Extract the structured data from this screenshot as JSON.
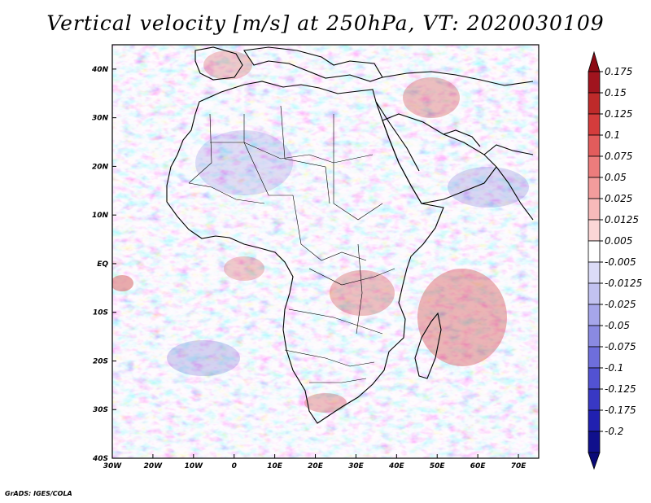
{
  "title": "Vertical velocity [m/s] at 250hPa, VT: 2020030109",
  "footer": "GrADS: IGES/COLA",
  "map": {
    "lon_range": [
      -30,
      75
    ],
    "lat_range": [
      -40,
      45
    ],
    "lon_ticks": [
      {
        "value": -30,
        "label": "30W"
      },
      {
        "value": -20,
        "label": "20W"
      },
      {
        "value": -10,
        "label": "10W"
      },
      {
        "value": 0,
        "label": "0"
      },
      {
        "value": 10,
        "label": "10E"
      },
      {
        "value": 20,
        "label": "20E"
      },
      {
        "value": 30,
        "label": "30E"
      },
      {
        "value": 40,
        "label": "40E"
      },
      {
        "value": 50,
        "label": "50E"
      },
      {
        "value": 60,
        "label": "60E"
      },
      {
        "value": 70,
        "label": "70E"
      }
    ],
    "lat_ticks": [
      {
        "value": 40,
        "label": "40N"
      },
      {
        "value": 30,
        "label": "30N"
      },
      {
        "value": 20,
        "label": "20N"
      },
      {
        "value": 10,
        "label": "10N"
      },
      {
        "value": 0,
        "label": "EQ"
      },
      {
        "value": -10,
        "label": "10S"
      },
      {
        "value": -20,
        "label": "20S"
      },
      {
        "value": -30,
        "label": "30S"
      },
      {
        "value": -40,
        "label": "40S"
      }
    ]
  },
  "colorbar": {
    "levels": [
      {
        "label": "0.175",
        "color": "#a0141e"
      },
      {
        "label": "0.15",
        "color": "#be2a2a"
      },
      {
        "label": "0.125",
        "color": "#d43c3c"
      },
      {
        "label": "0.1",
        "color": "#e25c5c"
      },
      {
        "label": "0.075",
        "color": "#ec7c7c"
      },
      {
        "label": "0.05",
        "color": "#f29c9c"
      },
      {
        "label": "0.025",
        "color": "#f7baba"
      },
      {
        "label": "0.0125",
        "color": "#fbd6d6"
      },
      {
        "label": "0.005",
        "color": "#ffffff"
      },
      {
        "label": "-0.005",
        "color": "#dcdcf7"
      },
      {
        "label": "-0.0125",
        "color": "#c2c2f0"
      },
      {
        "label": "-0.025",
        "color": "#a6a6ea"
      },
      {
        "label": "-0.05",
        "color": "#8a8ae2"
      },
      {
        "label": "-0.075",
        "color": "#6e6edc"
      },
      {
        "label": "-0.1",
        "color": "#5252d2"
      },
      {
        "label": "-0.125",
        "color": "#3838c4"
      },
      {
        "label": "-0.175",
        "color": "#2020b0"
      },
      {
        "label": "-0.2",
        "color": "#10108c"
      }
    ],
    "top_arrow_color": "#8c0a14",
    "bottom_arrow_color": "#0a0a78"
  }
}
